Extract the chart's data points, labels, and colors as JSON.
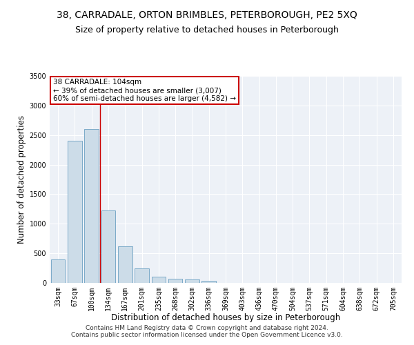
{
  "title1": "38, CARRADALE, ORTON BRIMBLES, PETERBOROUGH, PE2 5XQ",
  "title2": "Size of property relative to detached houses in Peterborough",
  "xlabel": "Distribution of detached houses by size in Peterborough",
  "ylabel": "Number of detached properties",
  "categories": [
    "33sqm",
    "67sqm",
    "100sqm",
    "134sqm",
    "167sqm",
    "201sqm",
    "235sqm",
    "268sqm",
    "302sqm",
    "336sqm",
    "369sqm",
    "403sqm",
    "436sqm",
    "470sqm",
    "504sqm",
    "537sqm",
    "571sqm",
    "604sqm",
    "638sqm",
    "672sqm",
    "705sqm"
  ],
  "values": [
    400,
    2400,
    2600,
    1230,
    620,
    240,
    100,
    70,
    55,
    40,
    5,
    5,
    5,
    5,
    5,
    5,
    5,
    5,
    5,
    5,
    5
  ],
  "bar_color": "#ccdce8",
  "bar_edge_color": "#7aaac8",
  "vline_color": "#cc0000",
  "annotation_text": "38 CARRADALE: 104sqm\n← 39% of detached houses are smaller (3,007)\n60% of semi-detached houses are larger (4,582) →",
  "annotation_box_color": "white",
  "annotation_box_edge": "#cc0000",
  "ylim": [
    0,
    3500
  ],
  "yticks": [
    0,
    500,
    1000,
    1500,
    2000,
    2500,
    3000,
    3500
  ],
  "bg_color": "#edf1f7",
  "grid_color": "#ffffff",
  "footer": "Contains HM Land Registry data © Crown copyright and database right 2024.\nContains public sector information licensed under the Open Government Licence v3.0.",
  "title1_fontsize": 10,
  "title2_fontsize": 9,
  "xlabel_fontsize": 8.5,
  "ylabel_fontsize": 8.5,
  "tick_fontsize": 7,
  "footer_fontsize": 6.5,
  "ann_fontsize": 7.5
}
